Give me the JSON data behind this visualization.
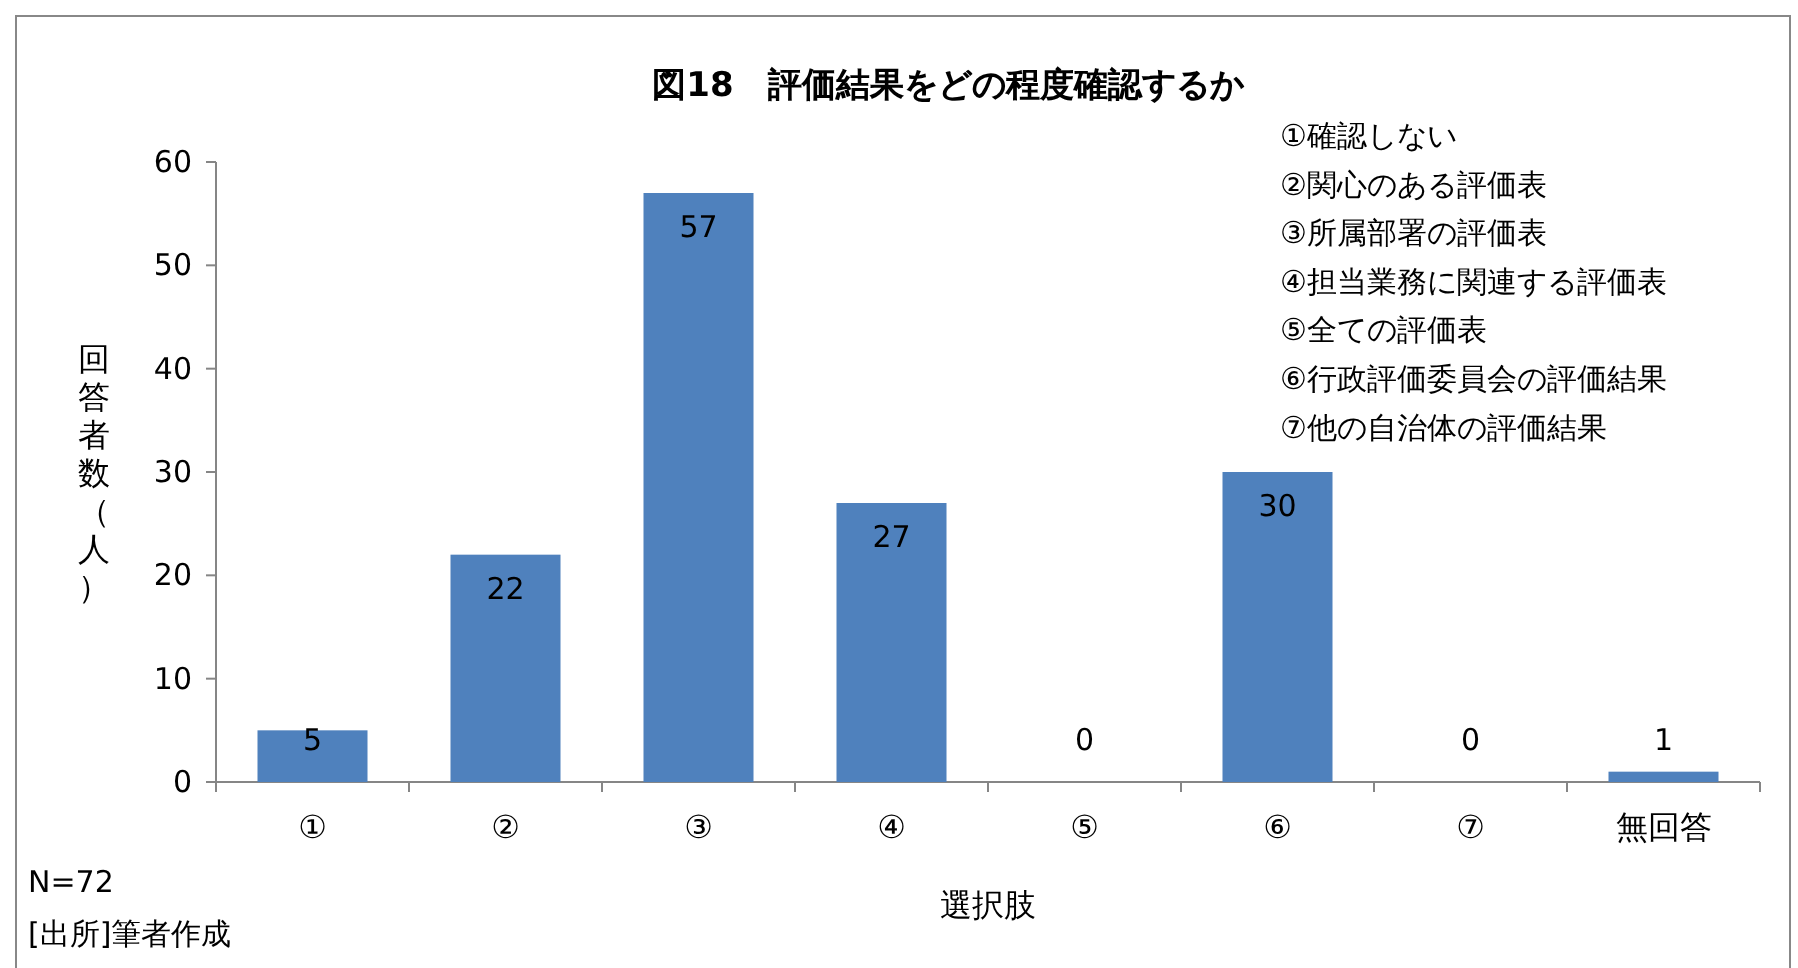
{
  "chart_data": {
    "type": "bar",
    "title": "図18　評価結果をどの程度確認するか",
    "categories": [
      "①",
      "②",
      "③",
      "④",
      "⑤",
      "⑥",
      "⑦",
      "無回答"
    ],
    "values": [
      5,
      22,
      57,
      27,
      0,
      30,
      0,
      1
    ],
    "color": "#4f81bd",
    "xlabel": "選択肢",
    "ylabel": "回答者数（人）",
    "ylim": [
      0,
      60
    ],
    "yticks": [
      0,
      10,
      20,
      30,
      40,
      50,
      60
    ],
    "data_labels": true,
    "annotations": [
      "①確認しない",
      "②関心のある評価表",
      "③所属部署の評価表",
      "④担当業務に関連する評価表",
      "⑤全ての評価表",
      "⑥行政評価委員会の評価結果",
      "⑦他の自治体の評価結果",
      "N=72",
      "[出所]筆者作成"
    ]
  }
}
